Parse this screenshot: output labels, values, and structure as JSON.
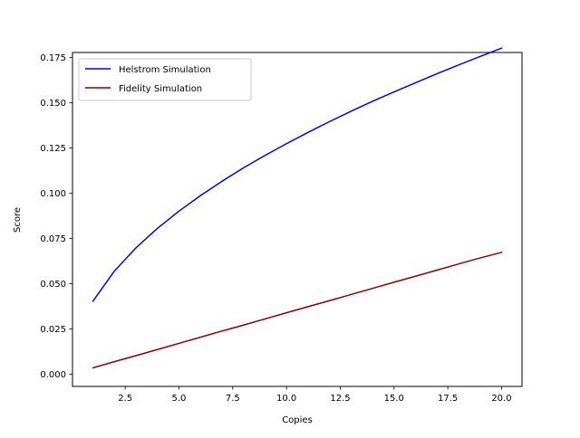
{
  "chart_data": {
    "type": "line",
    "title": "",
    "xlabel": "Copies",
    "ylabel": "Score",
    "xlim": [
      0.05,
      20.95
    ],
    "ylim": [
      -0.0068,
      0.1778
    ],
    "x_ticks": [
      2.5,
      5.0,
      7.5,
      10.0,
      12.5,
      15.0,
      17.5,
      20.0
    ],
    "x_tick_labels": [
      "2.5",
      "5.0",
      "7.5",
      "10.0",
      "12.5",
      "15.0",
      "17.5",
      "20.0"
    ],
    "y_ticks": [
      0.0,
      0.025,
      0.05,
      0.075,
      0.1,
      0.125,
      0.15,
      0.175
    ],
    "y_tick_labels": [
      "0.000",
      "0.025",
      "0.050",
      "0.075",
      "0.100",
      "0.125",
      "0.150",
      "0.175"
    ],
    "grid": false,
    "legend_position": "upper-left",
    "x": [
      1,
      2,
      3,
      4,
      5,
      6,
      7,
      8,
      9,
      10,
      11,
      12,
      13,
      14,
      15,
      16,
      17,
      18,
      19,
      20
    ],
    "series": [
      {
        "name": "Helstrom Simulation",
        "color": "#0000ff",
        "values": [
          0.0403,
          0.057,
          0.0698,
          0.0806,
          0.0901,
          0.0987,
          0.1066,
          0.114,
          0.1209,
          0.1274,
          0.1336,
          0.1396,
          0.1453,
          0.1508,
          0.156,
          0.1611,
          0.1661,
          0.1709,
          0.1756,
          0.1802
        ]
      },
      {
        "name": "Fidelity Simulation",
        "color": "#8b0000",
        "values": [
          0.0035,
          0.0069,
          0.0102,
          0.0136,
          0.017,
          0.0204,
          0.0238,
          0.0271,
          0.0305,
          0.0339,
          0.0373,
          0.0406,
          0.044,
          0.0474,
          0.0508,
          0.0541,
          0.0575,
          0.0609,
          0.0642,
          0.0673
        ]
      }
    ]
  }
}
